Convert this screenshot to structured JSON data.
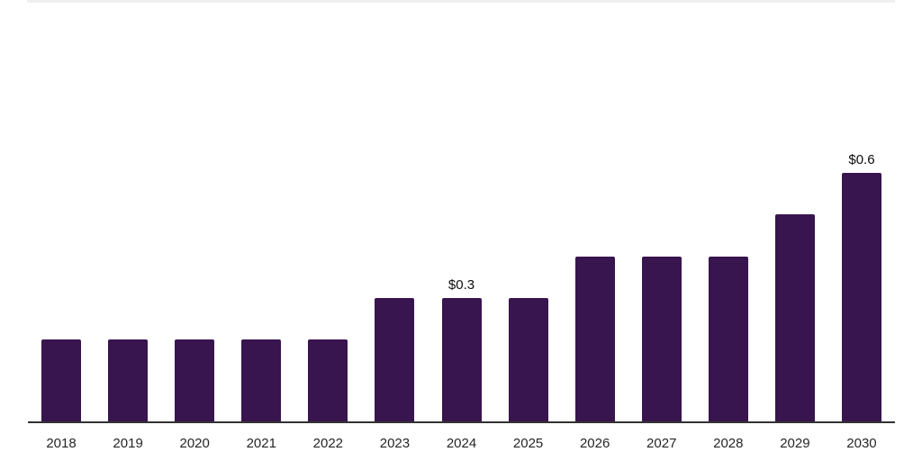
{
  "chart_data": {
    "type": "bar",
    "title": "",
    "xlabel": "",
    "ylabel": "",
    "categories": [
      "2018",
      "2019",
      "2020",
      "2021",
      "2022",
      "2023",
      "2024",
      "2025",
      "2026",
      "2027",
      "2028",
      "2029",
      "2030"
    ],
    "values": [
      0.2,
      0.2,
      0.2,
      0.2,
      0.2,
      0.3,
      0.3,
      0.3,
      0.4,
      0.4,
      0.4,
      0.5,
      0.6
    ],
    "value_labels": {
      "2024": "$0.3",
      "2030": "$0.6"
    },
    "ylim": [
      0,
      0.65
    ],
    "grid": false,
    "legend": "none",
    "colors": {
      "bar": "#38154E",
      "axis_line": "#333333",
      "top_border": "#f0f0f0",
      "tick_label": "#262626",
      "value_label": "#0d0d0d",
      "background": "#ffffff"
    }
  }
}
